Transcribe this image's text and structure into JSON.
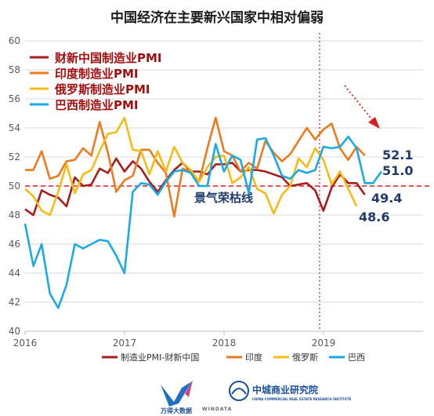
{
  "chart_data": {
    "type": "line",
    "title": "中国经济在主要新兴国家中相对偏弱",
    "ylim": [
      40,
      60
    ],
    "yticks": [
      40,
      42,
      44,
      46,
      48,
      50,
      52,
      54,
      56,
      58,
      60
    ],
    "xlim": [
      2016.0,
      2020.0
    ],
    "xticks": [
      {
        "value": 2016.0,
        "label": "2016"
      },
      {
        "value": 2017.0,
        "label": "2017"
      },
      {
        "value": 2018.0,
        "label": "2018"
      },
      {
        "value": 2019.0,
        "label": "2019"
      }
    ],
    "reference_line": {
      "value": 50,
      "label": "景气荣枯线",
      "color": "#d62020"
    },
    "vertical_marker": {
      "value": 2018.96,
      "color": "#d62020"
    },
    "legend_top": [
      {
        "label": "财新中国制造业PMI",
        "color": "#a91c1c"
      },
      {
        "label": "印度制造业PMI",
        "color": "#ec7a1e"
      },
      {
        "label": "俄罗斯制造业PMI",
        "color": "#f7bb15"
      },
      {
        "label": "巴西制造业PMI",
        "color": "#1aaae6"
      }
    ],
    "legend_bottom": [
      {
        "label": "制造业PMI-财新中国",
        "color": "#a91c1c"
      },
      {
        "label": "印度",
        "color": "#ec7a1e"
      },
      {
        "label": "俄罗斯",
        "color": "#f7bb15"
      },
      {
        "label": "巴西",
        "color": "#1aaae6"
      }
    ],
    "end_labels": [
      {
        "text": "52.1",
        "value": 52.1
      },
      {
        "text": "51.0",
        "value": 51.0
      },
      {
        "text": "49.4",
        "value": 49.4
      },
      {
        "text": "48.6",
        "value": 48.6
      }
    ],
    "series": [
      {
        "name": "财新中国",
        "color": "#a91c1c",
        "x0": 2016.0,
        "step": 0.0833,
        "values": [
          48.4,
          48.0,
          49.7,
          49.4,
          49.2,
          48.6,
          50.6,
          50.0,
          50.1,
          51.2,
          50.9,
          51.9,
          51.0,
          51.7,
          51.2,
          50.3,
          49.6,
          50.4,
          51.1,
          51.6,
          51.0,
          51.0,
          50.8,
          51.5,
          51.5,
          51.6,
          51.0,
          51.1,
          51.1,
          51.0,
          50.8,
          50.6,
          50.0,
          50.1,
          50.2,
          49.7,
          48.3,
          49.9,
          50.8,
          50.2,
          50.2,
          49.4
        ]
      },
      {
        "name": "印度",
        "color": "#ec7a1e",
        "x0": 2016.0,
        "step": 0.0833,
        "values": [
          51.1,
          51.1,
          52.4,
          50.5,
          50.7,
          51.7,
          51.8,
          52.6,
          52.1,
          54.4,
          52.3,
          49.6,
          50.4,
          50.7,
          52.5,
          52.5,
          51.6,
          50.9,
          47.9,
          51.2,
          51.0,
          50.3,
          52.6,
          54.7,
          52.4,
          52.1,
          51.0,
          51.6,
          51.2,
          53.1,
          52.3,
          51.7,
          52.2,
          53.1,
          54.0,
          53.2,
          53.9,
          54.3,
          52.6,
          51.8,
          52.7,
          52.1
        ]
      },
      {
        "name": "俄罗斯",
        "color": "#f7bb15",
        "x0": 2016.0,
        "step": 0.0833,
        "values": [
          49.8,
          49.3,
          48.3,
          48.0,
          49.6,
          51.5,
          49.5,
          50.8,
          51.1,
          52.4,
          53.6,
          53.7,
          54.7,
          52.5,
          52.4,
          50.8,
          52.4,
          51.0,
          52.7,
          51.6,
          51.1,
          50.3,
          51.3,
          52.0,
          52.1,
          50.2,
          50.6,
          51.3,
          49.8,
          49.5,
          48.1,
          49.4,
          50.0,
          51.9,
          51.3,
          52.6,
          51.8,
          50.1,
          51.0,
          49.8,
          48.6
        ]
      },
      {
        "name": "巴西",
        "color": "#1aaae6",
        "x0": 2016.0,
        "step": 0.0833,
        "values": [
          47.4,
          44.5,
          46.0,
          42.6,
          41.6,
          43.2,
          46.0,
          45.7,
          46.0,
          46.3,
          46.2,
          45.2,
          44.0,
          49.6,
          50.2,
          50.1,
          49.4,
          50.3,
          51.0,
          51.1,
          50.9,
          50.0,
          50.0,
          52.9,
          51.0,
          52.1,
          51.8,
          49.5,
          53.2,
          53.3,
          52.1,
          50.7,
          50.5,
          51.1,
          50.9,
          51.1,
          52.7,
          52.6,
          52.7,
          53.4,
          52.6,
          50.2,
          50.2,
          51.0
        ]
      }
    ]
  },
  "logos": {
    "wind_label": "万得大数据",
    "wind_sub": "WINDATA",
    "research_label": "中城商业研究院",
    "research_sub": "CHINA COMMERCIAL REAL ESTATE RESEARCH INSTITUTE"
  }
}
